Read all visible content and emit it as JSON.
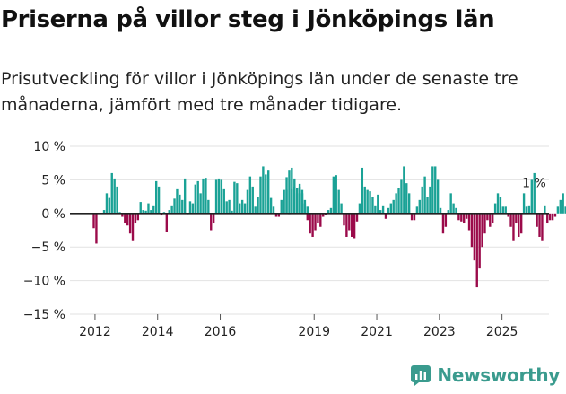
{
  "title": "Priserna på villor steg i Jönköpings län",
  "subtitle": "Prisutveckling för villor i Jönköpings län under de senaste tre månaderna, jämfört med tre månader tidigare.",
  "brand": "Newsworthy",
  "colors": {
    "positive": "#1aa296",
    "negative": "#9b0a4a",
    "grid": "#e2e2e2",
    "axis": "#222222",
    "brand": "#3a9b8e"
  },
  "chart_data": {
    "type": "bar",
    "ylim": [
      -15,
      10
    ],
    "y_ticks": [
      10,
      5,
      0,
      -5,
      -10,
      -15
    ],
    "y_tick_labels": [
      "10 %",
      "5 %",
      "0 %",
      "−5 %",
      "−10 %",
      "−15 %"
    ],
    "x_ticks": [
      2012,
      2014,
      2016,
      2019,
      2021,
      2023,
      2025
    ],
    "x_range": [
      2011.2,
      2026.5
    ],
    "annotation": {
      "text": "1 %",
      "x": 2025.5,
      "value": 1
    },
    "series": [
      {
        "start": 2011.96,
        "step": 0.0833,
        "values": [
          -2.2,
          -4.5
        ]
      },
      {
        "start": 2012.29,
        "step": 0.0833,
        "values": [
          0.5,
          3,
          2.3,
          6,
          5.2,
          4,
          0.2,
          -0.5,
          -1.5,
          -1.8,
          -3,
          -4,
          -1.5,
          -1,
          1.7,
          0.5,
          0.4,
          1.5,
          0.5,
          1.2,
          4.8,
          4,
          -0.3,
          0.2,
          -2.8,
          0.5,
          1.2,
          2.2,
          3.6,
          2.8,
          2,
          5.2,
          0,
          1.8,
          1.5,
          4.3,
          4.8,
          3,
          5.2,
          5.3,
          2,
          -2.5,
          -1.5,
          5,
          5.2,
          5,
          3.6,
          1.8,
          2,
          0.4,
          4.7,
          4.5,
          1.5,
          2,
          1.5,
          3.5,
          5.5,
          4,
          1,
          2.5,
          5.5,
          7,
          5.8,
          6.5,
          2.3,
          1,
          -0.5,
          -0.5,
          2,
          3.5,
          5.4,
          6.5,
          3.6,
          5.2,
          3.8,
          4.4,
          3,
          2,
          1
        ]
      },
      {
        "start": 2018.12,
        "step": 0.0833,
        "values": [
          3.5,
          0,
          6.8,
          4,
          3,
          4,
          3.5,
          1.5,
          -1,
          -3,
          -3.5,
          -2.5,
          -1.5,
          -2,
          -0.5,
          -0.2,
          0.5,
          0.8,
          5.5,
          5.7,
          3.5,
          1.5,
          -1.8,
          -3.5,
          -2.5,
          -3.5,
          -3.7,
          -1.2,
          1.5,
          6.8,
          4,
          3.5,
          3.3,
          2.5,
          1.2,
          2.8,
          0.5,
          1.2,
          -0.8,
          0.8,
          1.5,
          2,
          3,
          3.8,
          5,
          7,
          4.5,
          3,
          -1,
          -1,
          1,
          2,
          4,
          5.5,
          2.5,
          4,
          7,
          7,
          5,
          0.8,
          -3,
          -2,
          0.5,
          3,
          1.5,
          0.8,
          -1,
          -1.2,
          -1.5,
          -0.8,
          -2.5,
          -5,
          -7,
          -11,
          -8.2,
          -5,
          -3,
          -1,
          -2,
          -1.5,
          1.5,
          3,
          2.5,
          1,
          1,
          -0.5,
          -2,
          -4,
          -1.5,
          -3.5,
          -3,
          3,
          1,
          1.2,
          5,
          6,
          -2,
          -3.5,
          -4,
          1.2,
          -1.5,
          -1,
          -1,
          -0.5,
          1,
          2,
          3,
          1,
          1
        ]
      }
    ]
  }
}
